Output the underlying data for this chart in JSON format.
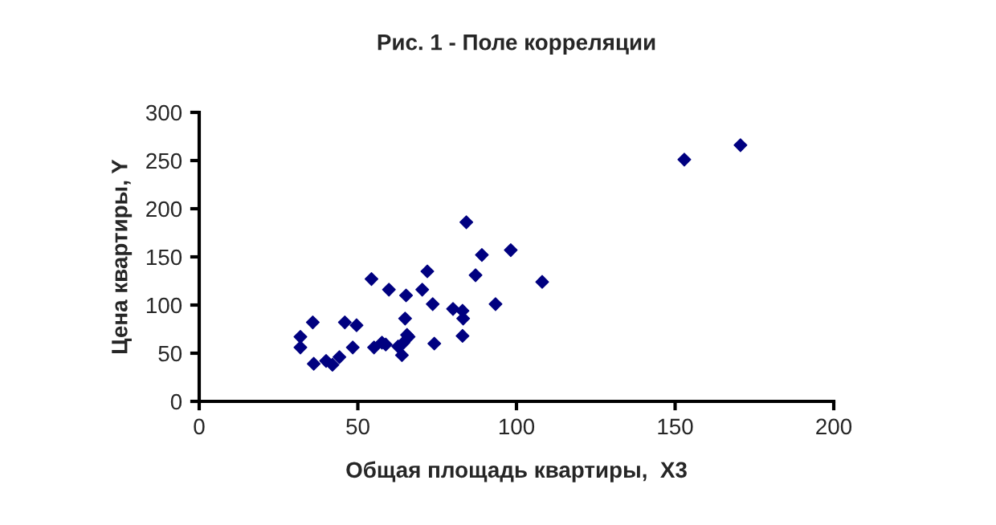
{
  "chart_data": {
    "type": "scatter",
    "title": "Рис. 1 - Поле корреляции",
    "xlabel": "Общая площадь квартиры,  X3",
    "ylabel": "Цена квартиры, Y",
    "x": [
      31.9,
      31.9,
      35.8,
      36.1,
      40,
      42,
      44.2,
      45.9,
      49.6,
      48.4,
      54.3,
      55.1,
      57.6,
      58.8,
      59.8,
      62.7,
      63.9,
      64.4,
      64.9,
      65.2,
      65.5,
      66,
      70.3,
      71.9,
      73.6,
      74.1,
      80,
      83,
      83.2,
      83,
      84.2,
      87.1,
      89.1,
      93.4,
      98.2,
      108.1,
      152.9,
      170.6
    ],
    "values": [
      67,
      56,
      82,
      39,
      42,
      38,
      46,
      82,
      79,
      56,
      127,
      56,
      61,
      59,
      116,
      57,
      48,
      61,
      86,
      110,
      69,
      67,
      116,
      135,
      101,
      60,
      96,
      94,
      86,
      68,
      186,
      131,
      152,
      101,
      157,
      124,
      251,
      266
    ],
    "color": "#000080",
    "marker": "diamond",
    "xlim": [
      0,
      200
    ],
    "xticks": [
      0,
      50,
      100,
      150,
      200
    ],
    "ylim": [
      0,
      300
    ],
    "yticks": [
      0,
      50,
      100,
      150,
      200,
      250,
      300
    ],
    "grid": false,
    "legend": false
  }
}
